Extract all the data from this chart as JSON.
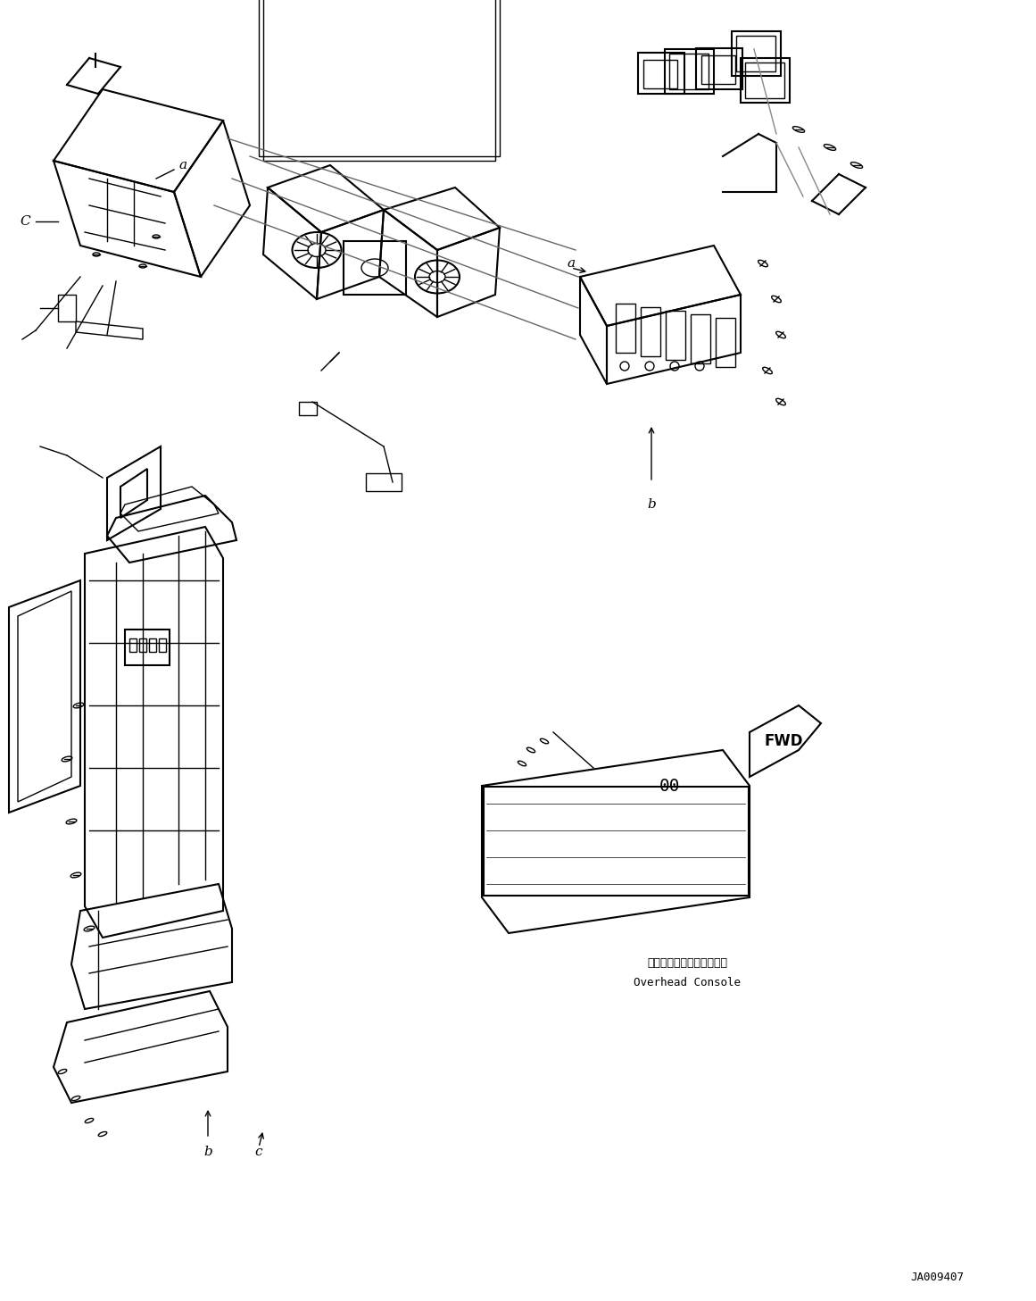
{
  "background_color": "#ffffff",
  "line_color": "#000000",
  "fig_width": 11.61,
  "fig_height": 14.57,
  "dpi": 100,
  "part_code": "JA009407",
  "label_a1": "a",
  "label_a2": "a",
  "label_b1": "b",
  "label_b2": "b",
  "label_c1": "C",
  "label_c2": "c",
  "overhead_console_jp": "オーバーヘッドコンソール",
  "overhead_console_en": "Overhead Console",
  "fwd_label": "FWD"
}
